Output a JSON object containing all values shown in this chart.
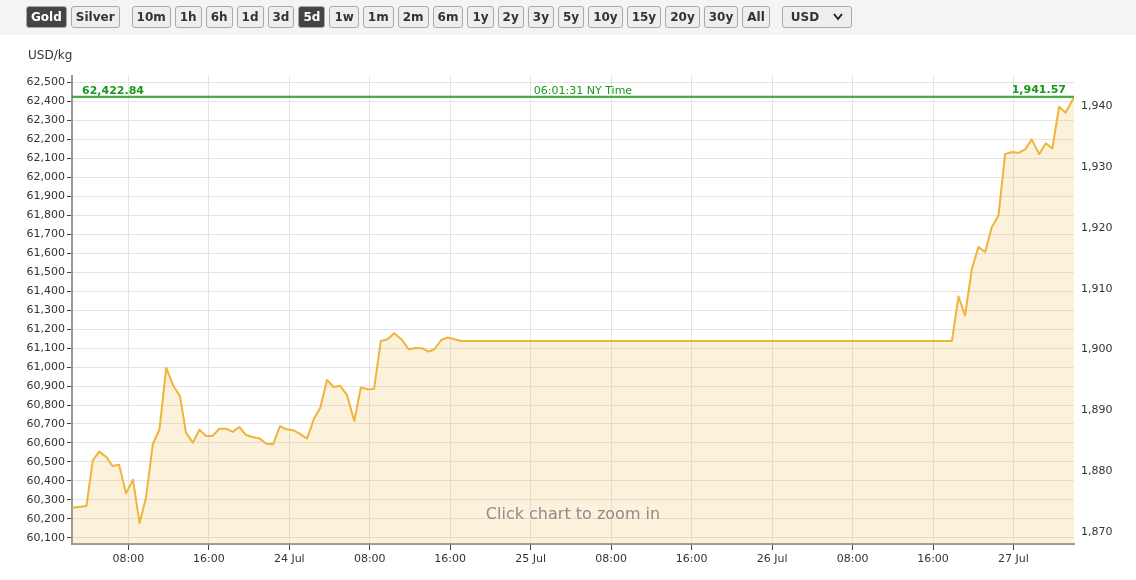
{
  "chart_data": {
    "type": "area",
    "ylabel": "USD/kg",
    "x": [
      "--07-23T02:25",
      "--07-23T03:50",
      "--07-23T04:28",
      "--07-23T05:06",
      "--07-23T05:49",
      "--07-23T06:25",
      "--07-23T07:05",
      "--07-23T07:46",
      "--07-23T08:28",
      "--07-23T09:07",
      "--07-23T09:45",
      "--07-23T10:26",
      "--07-23T11:06",
      "--07-23T11:46",
      "--07-23T12:29",
      "--07-23T13:08",
      "--07-23T13:44",
      "--07-23T14:25",
      "--07-23T15:04",
      "--07-23T15:44",
      "--07-23T16:23",
      "--07-23T17:03",
      "--07-23T17:43",
      "--07-23T18:22",
      "--07-23T19:02",
      "--07-23T19:41",
      "--07-23T20:21",
      "--07-23T21:01",
      "--07-23T21:44",
      "--07-23T22:24",
      "--07-23T23:04",
      "--07-23T23:43",
      "--07-24T00:23",
      "--07-24T01:02",
      "--07-24T01:46",
      "--07-24T02:26",
      "--07-24T03:05",
      "--07-24T03:45",
      "--07-24T04:25",
      "--07-24T05:04",
      "--07-24T05:44",
      "--07-24T06:28",
      "--07-24T07:07",
      "--07-24T07:47",
      "--07-24T08:26",
      "--07-24T09:06",
      "--07-24T09:46",
      "--07-24T10:26",
      "--07-24T11:08",
      "--07-24T11:53",
      "--07-24T12:33",
      "--07-24T13:13",
      "--07-24T13:52",
      "--07-24T14:26",
      "--07-24T15:06",
      "--07-24T15:46",
      "--07-24T17:05",
      "--07-26T17:53",
      "--07-26T18:32",
      "--07-26T19:11",
      "--07-26T19:52",
      "--07-26T20:31",
      "--07-26T21:11",
      "--07-26T21:50",
      "--07-26T22:31",
      "--07-26T23:10",
      "--07-26T23:50",
      "--07-27T00:30",
      "--07-27T01:10",
      "--07-27T01:49",
      "--07-27T02:33",
      "--07-27T03:13",
      "--07-27T03:52",
      "--07-27T04:32",
      "--07-27T05:11",
      "--07-27T06:01"
    ],
    "series": [
      {
        "color": "#f0b43c",
        "values": [
          60258,
          60267,
          60508,
          60554,
          60526,
          60478,
          60485,
          60334,
          60406,
          60177,
          60311,
          60593,
          60672,
          60997,
          60900,
          60848,
          60654,
          60601,
          60670,
          60637,
          60637,
          60675,
          60675,
          60658,
          60684,
          60642,
          60631,
          60624,
          60596,
          60593,
          60689,
          60672,
          60667,
          60649,
          60623,
          60725,
          60786,
          60932,
          60895,
          60901,
          60853,
          60716,
          60892,
          60883,
          60885,
          61138,
          61147,
          61179,
          61147,
          61094,
          61101,
          61099,
          61082,
          61094,
          61143,
          61156,
          61138,
          61138,
          61372,
          61272,
          61519,
          61633,
          61607,
          61736,
          61801,
          62123,
          62134,
          62130,
          62148,
          62201,
          62123,
          62180,
          62153,
          62373,
          62341,
          62423
        ]
      }
    ],
    "xlim": [
      "--07-23T02:24",
      "--07-27T06:01"
    ],
    "xticks": [
      {
        "value": "--07-23T08:00",
        "label": "08:00"
      },
      {
        "value": "--07-23T16:00",
        "label": "16:00"
      },
      {
        "value": "--07-24",
        "label": "24 Jul"
      },
      {
        "value": "--07-24T08:00",
        "label": "08:00"
      },
      {
        "value": "--07-24T16:00",
        "label": "16:00"
      },
      {
        "value": "--07-25",
        "label": "25 Jul"
      },
      {
        "value": "--07-25T08:00",
        "label": "08:00"
      },
      {
        "value": "--07-25T16:00",
        "label": "16:00"
      },
      {
        "value": "--07-26",
        "label": "26 Jul"
      },
      {
        "value": "--07-26T08:00",
        "label": "08:00"
      },
      {
        "value": "--07-26T16:00",
        "label": "16:00"
      },
      {
        "value": "--07-27",
        "label": "27 Jul"
      }
    ],
    "ylim": [
      60067,
      62535
    ],
    "yticks": [
      {
        "value": 60100,
        "label": "60,100"
      },
      {
        "value": 60200,
        "label": "60,200"
      },
      {
        "value": 60300,
        "label": "60,300"
      },
      {
        "value": 60400,
        "label": "60,400"
      },
      {
        "value": 60500,
        "label": "60,500"
      },
      {
        "value": 60600,
        "label": "60,600"
      },
      {
        "value": 60700,
        "label": "60,700"
      },
      {
        "value": 60800,
        "label": "60,800"
      },
      {
        "value": 60900,
        "label": "60,900"
      },
      {
        "value": 61000,
        "label": "61,000"
      },
      {
        "value": 61100,
        "label": "61,100"
      },
      {
        "value": 61200,
        "label": "61,200"
      },
      {
        "value": 61300,
        "label": "61,300"
      },
      {
        "value": 61400,
        "label": "61,400"
      },
      {
        "value": 61500,
        "label": "61,500"
      },
      {
        "value": 61600,
        "label": "61,600"
      },
      {
        "value": 61700,
        "label": "61,700"
      },
      {
        "value": 61800,
        "label": "61,800"
      },
      {
        "value": 61900,
        "label": "61,900"
      },
      {
        "value": 62000,
        "label": "62,000"
      },
      {
        "value": 62100,
        "label": "62,100"
      },
      {
        "value": 62200,
        "label": "62,200"
      },
      {
        "value": 62300,
        "label": "62,300"
      },
      {
        "value": 62400,
        "label": "62,400"
      },
      {
        "value": 62500,
        "label": "62,500"
      }
    ],
    "y2lim": [
      1868.1,
      1944.9
    ],
    "y2ticks": [
      {
        "value": 1870,
        "label": "1,870"
      },
      {
        "value": 1880,
        "label": "1,880"
      },
      {
        "value": 1890,
        "label": "1,890"
      },
      {
        "value": 1900,
        "label": "1,900"
      },
      {
        "value": 1910,
        "label": "1,910"
      },
      {
        "value": 1920,
        "label": "1,920"
      },
      {
        "value": 1930,
        "label": "1,930"
      },
      {
        "value": 1940,
        "label": "1,940"
      }
    ],
    "ref_lines": [
      {
        "axis": "y",
        "value": 62422.84,
        "label": "62,422.84",
        "color": "#1a9a1a"
      },
      {
        "axis": "y2",
        "value": 1941.57,
        "label": "1,941.57",
        "color": "#1a9a1a"
      }
    ],
    "annotations": [
      "Gold",
      "Silver",
      "10m",
      "1h",
      "6h",
      "1d",
      "3d",
      "5d",
      "1w",
      "1m",
      "2m",
      "6m",
      "1y",
      "2y",
      "3y",
      "5y",
      "10y",
      "15y",
      "20y",
      "30y",
      "All",
      "USD",
      {
        "text": "06:01:31 NY Time",
        "x": "--07-25T05:12",
        "y": 62422.84
      },
      "Click chart to zoom in"
    ],
    "grid": true,
    "legend": false,
    "marker": "none",
    "line_style": "solid"
  }
}
